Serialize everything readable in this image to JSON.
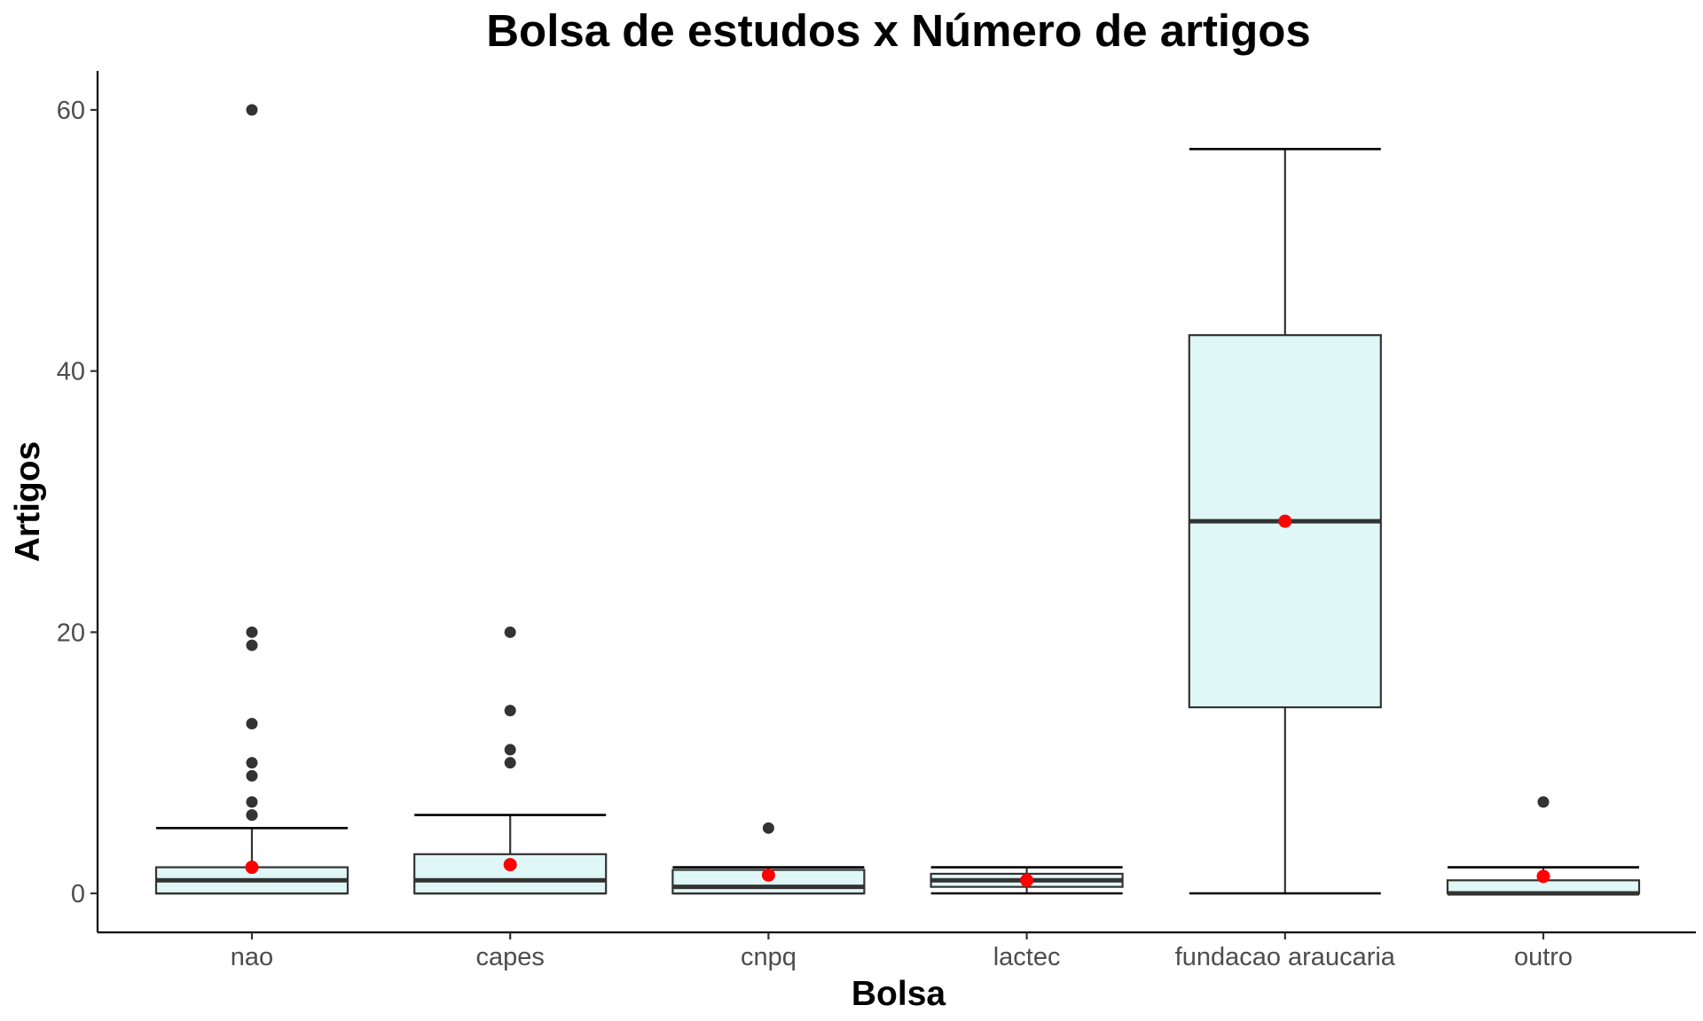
{
  "chart_data": {
    "type": "box",
    "title": "Bolsa de estudos x Número de artigos",
    "xlabel": "Bolsa",
    "ylabel": "Artigos",
    "ylim": [
      -3,
      63
    ],
    "yticks": [
      0,
      20,
      40,
      60
    ],
    "grid": false,
    "legend": "none",
    "colors": {
      "box_fill": "#e0f7f7",
      "box_stroke": "#333333",
      "mean_point": "#ff0000",
      "outlier_point": "#333333"
    },
    "categories": [
      "nao",
      "capes",
      "cnpq",
      "lactec",
      "fundacao araucaria",
      "outro"
    ],
    "boxes": [
      {
        "category": "nao",
        "whisker_low": 0,
        "q1": 0,
        "median": 1,
        "q3": 2,
        "whisker_high": 5,
        "mean": 2.0,
        "outliers": [
          6,
          6,
          7,
          9,
          10,
          13,
          19,
          20,
          60
        ]
      },
      {
        "category": "capes",
        "whisker_low": 0,
        "q1": 0,
        "median": 1,
        "q3": 3,
        "whisker_high": 6,
        "mean": 2.2,
        "outliers": [
          10,
          11,
          14,
          20
        ]
      },
      {
        "category": "cnpq",
        "whisker_low": 0,
        "q1": 0,
        "median": 0.5,
        "q3": 1.8,
        "whisker_high": 2,
        "mean": 1.4,
        "outliers": [
          5
        ]
      },
      {
        "category": "lactec",
        "whisker_low": 0,
        "q1": 0.5,
        "median": 1,
        "q3": 1.5,
        "whisker_high": 2,
        "mean": 1.0,
        "outliers": []
      },
      {
        "category": "fundacao araucaria",
        "whisker_low": 0,
        "q1": 14.25,
        "median": 28.5,
        "q3": 42.75,
        "whisker_high": 57,
        "mean": 28.5,
        "outliers": []
      },
      {
        "category": "outro",
        "whisker_low": 0,
        "q1": 0,
        "median": 0,
        "q3": 1,
        "whisker_high": 2,
        "mean": 1.3,
        "outliers": [
          7
        ]
      }
    ]
  }
}
